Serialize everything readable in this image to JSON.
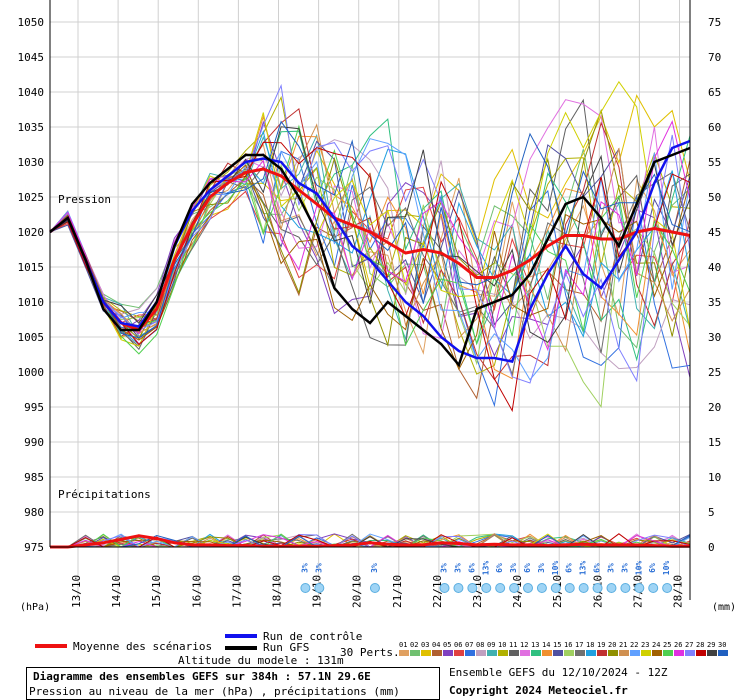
{
  "chart_data": {
    "type": "line",
    "title": "Diagramme des ensembles GEFS sur 384h : 57.1N 29.6E",
    "subtitle": "Pression au niveau de la mer (hPa) , précipitations (mm)",
    "left_unit": "(hPa)",
    "right_unit": "(mm)",
    "pressure_label": "Pression",
    "precip_label": "Précipitations",
    "left_ticks": [
      1050,
      1045,
      1040,
      1035,
      1030,
      1025,
      1020,
      1015,
      1010,
      1005,
      1000,
      995,
      990,
      985,
      980,
      975
    ],
    "right_ticks": [
      75,
      70,
      65,
      60,
      55,
      50,
      45,
      40,
      35,
      30,
      25,
      20,
      15,
      10,
      5,
      0
    ],
    "ylim_pressure": [
      975,
      1051
    ],
    "x_labels": [
      "13/10",
      "14/10",
      "15/10",
      "16/10",
      "17/10",
      "18/10",
      "19/10",
      "20/10",
      "21/10",
      "22/10",
      "23/10",
      "24/10",
      "25/10",
      "26/10",
      "27/10",
      "28/10"
    ],
    "series": [
      {
        "name": "Moyenne des scénarios",
        "color": "#ee1111",
        "values": [
          1020,
          1022,
          1016,
          1010,
          1007,
          1006,
          1009,
          1016,
          1021,
          1025,
          1027,
          1028.5,
          1029,
          1028,
          1026,
          1024,
          1022,
          1021,
          1020,
          1018.5,
          1017,
          1017.5,
          1017,
          1015.5,
          1013.5,
          1013.5,
          1014.5,
          1016,
          1018,
          1019.5,
          1019.5,
          1019,
          1019,
          1020,
          1020.5,
          1020,
          1019.5
        ]
      },
      {
        "name": "Run de contrôle",
        "color": "#1111ee",
        "values": [
          1020,
          1022,
          1016,
          1010,
          1007,
          1006.5,
          1010,
          1018,
          1023,
          1026,
          1028,
          1030,
          1030.5,
          1030,
          1027,
          1025.5,
          1022,
          1018,
          1016,
          1013,
          1010,
          1008,
          1005,
          1003,
          1002,
          1002,
          1001.5,
          1009,
          1014,
          1018,
          1014,
          1012,
          1016,
          1020,
          1027,
          1032,
          1033
        ]
      },
      {
        "name": "Run GFS",
        "color": "#000000",
        "values": [
          1020,
          1022,
          1016,
          1009,
          1006,
          1006,
          1010,
          1018,
          1024,
          1027,
          1029,
          1031,
          1031,
          1029,
          1025,
          1020,
          1012,
          1009,
          1007,
          1010,
          1008,
          1006,
          1004,
          1001,
          1009,
          1010,
          1011,
          1014,
          1019,
          1024,
          1025,
          1022,
          1018,
          1024,
          1030,
          1031,
          1032
        ]
      }
    ],
    "precip_series": [
      {
        "name": "Moyenne des scénarios",
        "color": "#ee1111",
        "values": [
          0,
          0,
          0.3,
          0.6,
          1.1,
          1.6,
          1.2,
          0.6,
          0.3,
          0.3,
          0.2,
          0.2,
          0.1,
          0.1,
          0.1,
          0.1,
          0.2,
          0.3,
          0.6,
          0.4,
          0.3,
          0.3,
          0.6,
          0.5,
          0.3,
          0.4,
          0.3,
          0.3,
          0.2,
          0.3,
          0.4,
          0.3,
          0.3,
          0.3,
          0.2,
          0.1,
          0.1
        ]
      }
    ],
    "snow_markers": [
      {
        "label": "3%",
        "index": 19
      },
      {
        "label": "3%",
        "index": 20
      },
      {
        "label": "3%",
        "index": 24
      },
      {
        "label": "3%",
        "index": 29
      },
      {
        "label": "3%",
        "index": 30
      },
      {
        "label": "6%",
        "index": 31
      },
      {
        "label": "13%",
        "index": 32
      },
      {
        "label": "6%",
        "index": 33
      },
      {
        "label": "3%",
        "index": 34
      },
      {
        "label": "6%",
        "index": 35
      },
      {
        "label": "3%",
        "index": 36
      },
      {
        "label": "10%",
        "index": 37
      },
      {
        "label": "6%",
        "index": 38
      },
      {
        "label": "13%",
        "index": 39
      },
      {
        "label": "6%",
        "index": 40
      },
      {
        "label": "3%",
        "index": 41
      },
      {
        "label": "3%",
        "index": 42
      },
      {
        "label": "10%",
        "index": 43
      },
      {
        "label": "6%",
        "index": 44
      },
      {
        "label": "10%",
        "index": 45
      }
    ]
  },
  "legend": {
    "mean_label": "Moyenne des scénarios",
    "control_label": "Run de contrôle",
    "gfs_label": "Run GFS",
    "perts_label": "30 Perts.",
    "altitude_label": "Altitude du modele : 131m",
    "pert_numbers": [
      "01",
      "02",
      "03",
      "04",
      "05",
      "06",
      "07",
      "08",
      "09",
      "10",
      "11",
      "12",
      "13",
      "14",
      "15",
      "16",
      "17",
      "18",
      "19",
      "20",
      "21",
      "22",
      "23",
      "24",
      "25",
      "26",
      "27",
      "28",
      "29",
      "30"
    ],
    "pert_colors": [
      "#e0a060",
      "#70c070",
      "#e0c000",
      "#b06030",
      "#8040c0",
      "#e04040",
      "#3070e0",
      "#c0a0c0",
      "#40b0b0",
      "#b0b000",
      "#606060",
      "#e070e0",
      "#30c080",
      "#f09030",
      "#5050a0",
      "#a0d060",
      "#707070",
      "#20a0e0",
      "#c03030",
      "#909000",
      "#d09050",
      "#60a0ff",
      "#d0d000",
      "#a06000",
      "#50d050",
      "#e030e0",
      "#8080ff",
      "#c00000",
      "#404040",
      "#2060c0"
    ]
  },
  "footer": {
    "title": "Diagramme des ensembles GEFS sur 384h : 57.1N 29.6E",
    "subtitle": "Pression au niveau de la mer (hPa) , précipitations (mm)",
    "run_label": "Ensemble GEFS du 12/10/2024 - 12Z",
    "copyright": "Copyright 2024 Meteociel.fr"
  }
}
